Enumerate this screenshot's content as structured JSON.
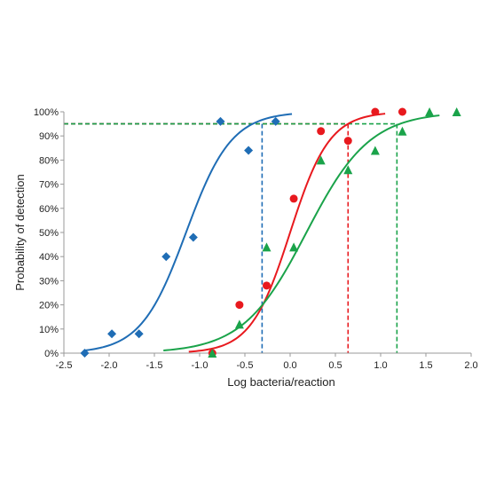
{
  "chart_data": {
    "type": "scatter",
    "title": "",
    "xlabel": "Log bacteria/reaction",
    "ylabel": "Probability of detection",
    "xlim": [
      -2.5,
      2.0
    ],
    "ylim": [
      0,
      100
    ],
    "x_ticks": [
      -2.5,
      -2.0,
      -1.5,
      -1.0,
      -0.5,
      0.0,
      0.5,
      1.0,
      1.5,
      2.0
    ],
    "x_tick_labels": [
      "-2.5",
      "-2.0",
      "-1.5",
      "-1.0",
      "-0.5",
      "0.0",
      "0.5",
      "1.0",
      "1.5",
      "2.0"
    ],
    "y_ticks": [
      0,
      10,
      20,
      30,
      40,
      50,
      60,
      70,
      80,
      90,
      100
    ],
    "y_tick_labels": [
      "0%",
      "10%",
      "20%",
      "30%",
      "40%",
      "50%",
      "60%",
      "70%",
      "80%",
      "90%",
      "100%"
    ],
    "grid": false,
    "legend": "none",
    "series": [
      {
        "marker": "diamond",
        "color": "#1f6db5",
        "points": [
          [
            -2.27,
            0
          ],
          [
            -1.97,
            8
          ],
          [
            -1.67,
            8
          ],
          [
            -1.37,
            40
          ],
          [
            -1.07,
            48
          ],
          [
            -0.77,
            96
          ],
          [
            -0.46,
            84
          ],
          [
            -0.16,
            96
          ]
        ],
        "fit": {
          "x50": -1.15,
          "slope": 4.0,
          "x_range": [
            -2.27,
            0.02
          ]
        },
        "threshold": {
          "x": -0.31,
          "y": 95
        }
      },
      {
        "marker": "circle",
        "color": "#e8191e",
        "points": [
          [
            -0.86,
            0
          ],
          [
            -0.56,
            20
          ],
          [
            -0.26,
            28
          ],
          [
            0.04,
            64
          ],
          [
            0.34,
            92
          ],
          [
            0.64,
            88
          ],
          [
            0.94,
            100
          ],
          [
            1.24,
            100
          ]
        ],
        "fit": {
          "x50": 0.0,
          "slope": 4.6,
          "x_range": [
            -1.12,
            1.05
          ]
        },
        "threshold": {
          "x": 0.64,
          "y": 95
        }
      },
      {
        "marker": "triangle",
        "color": "#1aa34a",
        "points": [
          [
            -0.86,
            0
          ],
          [
            -0.56,
            12
          ],
          [
            -0.26,
            44
          ],
          [
            0.04,
            44
          ],
          [
            0.34,
            80
          ],
          [
            0.64,
            76
          ],
          [
            0.94,
            84
          ],
          [
            1.24,
            92
          ],
          [
            1.54,
            100
          ],
          [
            1.84,
            100
          ]
        ],
        "fit": {
          "x50": 0.18,
          "slope": 2.85,
          "x_range": [
            -1.4,
            1.65
          ]
        },
        "threshold": {
          "x": 1.18,
          "y": 95
        }
      }
    ]
  }
}
